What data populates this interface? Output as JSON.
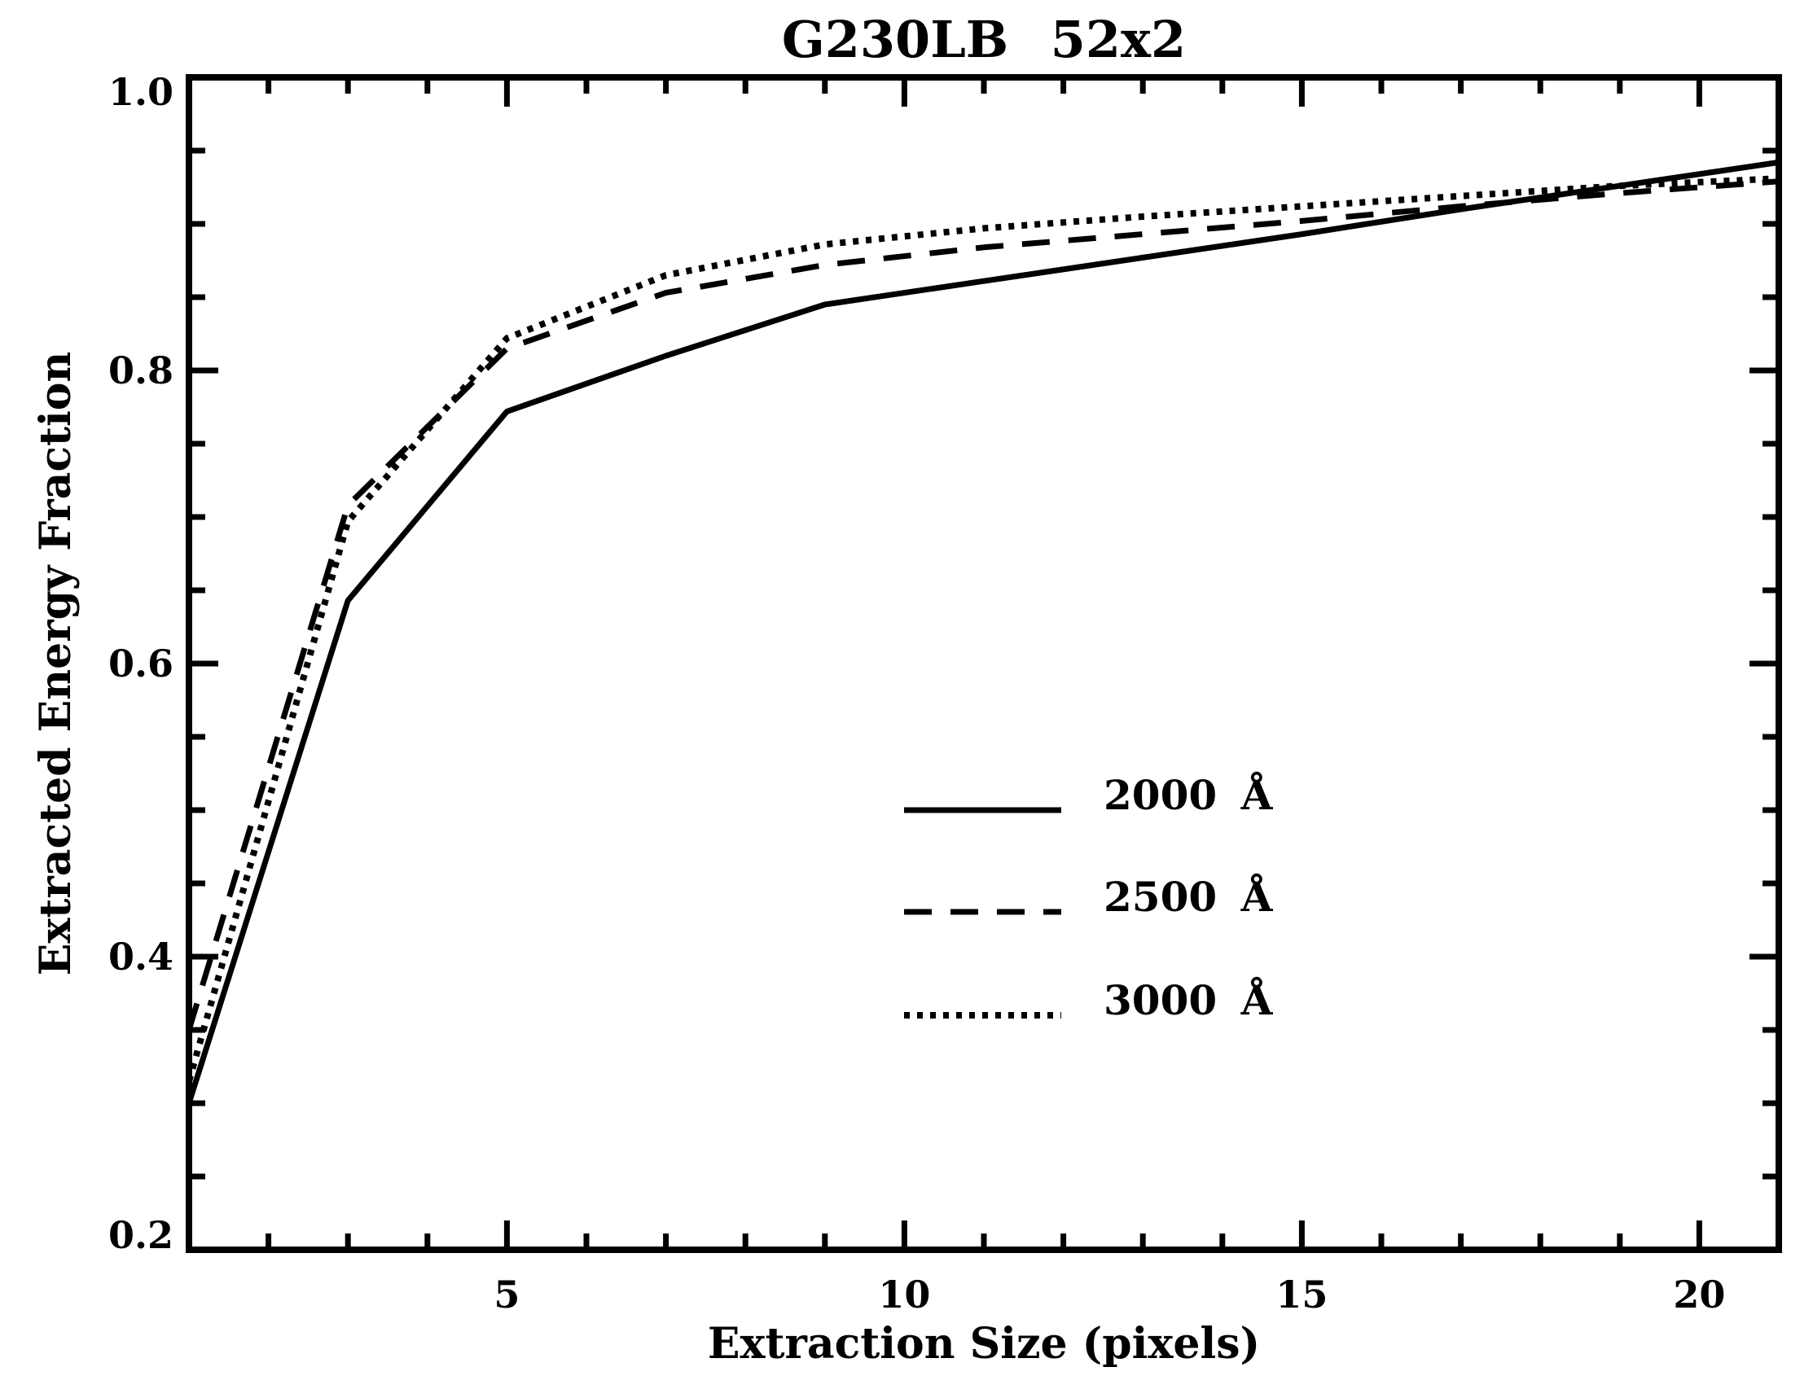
{
  "title": "G230LB 52x2",
  "chart_data": {
    "type": "line",
    "title": "G230LB 52x2",
    "xlabel": "Extraction Size (pixels)",
    "ylabel": "Extracted Energy Fraction",
    "xlim": [
      1,
      21
    ],
    "ylim": [
      0.2,
      1.0
    ],
    "xticks": {
      "major": [
        5,
        10,
        15,
        20
      ],
      "labels": [
        "5",
        "10",
        "15",
        "20"
      ],
      "minor_step": 1
    },
    "yticks": {
      "major": [
        0.2,
        0.4,
        0.6,
        0.8,
        1.0
      ],
      "labels": [
        "0.2",
        "0.4",
        "0.6",
        "0.8",
        "1.0"
      ],
      "minor_step": 0.05
    },
    "grid": false,
    "legend_position": "inside lower right-center",
    "line_color": "#000000",
    "background_color": "#ffffff",
    "x": [
      1,
      3,
      5,
      7,
      9,
      11,
      13,
      15,
      17,
      19,
      21
    ],
    "series": [
      {
        "name": "2000 Å",
        "line_style": "solid",
        "values": [
          0.3,
          0.643,
          0.772,
          0.81,
          0.845,
          0.861,
          0.877,
          0.893,
          0.91,
          0.926,
          0.942
        ]
      },
      {
        "name": "2500 Å",
        "line_style": "dashed",
        "values": [
          0.35,
          0.708,
          0.815,
          0.853,
          0.872,
          0.884,
          0.893,
          0.902,
          0.912,
          0.921,
          0.929
        ]
      },
      {
        "name": "3000 Å",
        "line_style": "dotted",
        "values": [
          0.315,
          0.697,
          0.822,
          0.865,
          0.886,
          0.897,
          0.905,
          0.912,
          0.919,
          0.926,
          0.931
        ]
      }
    ]
  }
}
